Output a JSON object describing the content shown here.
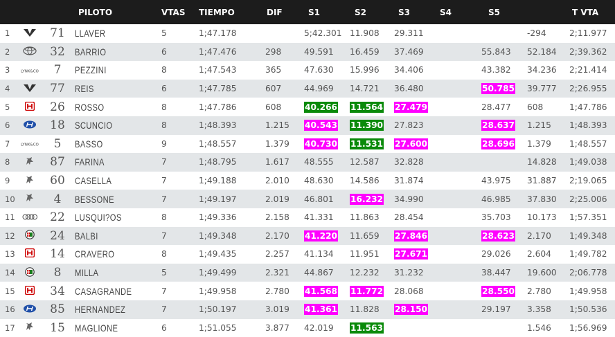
{
  "header": {
    "piloto": "PILOTO",
    "vtas": "VTAS",
    "tiempo": "TIEMPO",
    "dif": "DIF",
    "s1": "S1",
    "s2": "S2",
    "s3": "S3",
    "s4": "S4",
    "s5": "S5",
    "tvta": "T VTA"
  },
  "rows": [
    {
      "pos": "1",
      "brand": "cupra",
      "num": "71",
      "name": "LLAVER",
      "vtas": "5",
      "tiempo": "1;47.178",
      "dif": "",
      "s1": "5;42.301",
      "s2": "11.908",
      "s3": "29.311",
      "s4": "",
      "s5": "",
      "x": "-294",
      "tvta": "2;11.977"
    },
    {
      "pos": "2",
      "brand": "toyota",
      "num": "32",
      "name": "BARRIO",
      "vtas": "6",
      "tiempo": "1;47.476",
      "dif": "298",
      "s1": "49.591",
      "s2": "16.459",
      "s3": "37.469",
      "s4": "",
      "s5": "55.843",
      "x": "52.184",
      "tvta": "2;39.362"
    },
    {
      "pos": "3",
      "brand": "lynkco",
      "num": "7",
      "name": "PEZZINI",
      "vtas": "8",
      "tiempo": "1;47.543",
      "dif": "365",
      "s1": "47.630",
      "s2": "15.996",
      "s3": "34.406",
      "s4": "",
      "s5": "43.382",
      "x": "34.236",
      "tvta": "2;21.414"
    },
    {
      "pos": "4",
      "brand": "cupra",
      "num": "77",
      "name": "REIS",
      "vtas": "6",
      "tiempo": "1;47.785",
      "dif": "607",
      "s1": "44.969",
      "s2": "14.721",
      "s3": "36.480",
      "s4": "",
      "s5": "50.785",
      "x": "39.777",
      "tvta": "2;26.955"
    },
    {
      "pos": "5",
      "brand": "honda",
      "num": "26",
      "name": "ROSSO",
      "vtas": "8",
      "tiempo": "1;47.786",
      "dif": "608",
      "s1": "40.266",
      "s2": "11.564",
      "s3": "27.479",
      "s4": "",
      "s5": "28.477",
      "x": "608",
      "tvta": "1;47.786"
    },
    {
      "pos": "6",
      "brand": "hyundai",
      "num": "18",
      "name": "SCUNCIO",
      "vtas": "8",
      "tiempo": "1;48.393",
      "dif": "1.215",
      "s1": "40.543",
      "s2": "11.390",
      "s3": "27.823",
      "s4": "",
      "s5": "28.637",
      "x": "1.215",
      "tvta": "1;48.393"
    },
    {
      "pos": "7",
      "brand": "lynkco",
      "num": "5",
      "name": "BASSO",
      "vtas": "9",
      "tiempo": "1;48.557",
      "dif": "1.379",
      "s1": "40.730",
      "s2": "11.531",
      "s3": "27.600",
      "s4": "",
      "s5": "28.696",
      "x": "1.379",
      "tvta": "1;48.557"
    },
    {
      "pos": "8",
      "brand": "peugeot",
      "num": "87",
      "name": "FARINA",
      "vtas": "7",
      "tiempo": "1;48.795",
      "dif": "1.617",
      "s1": "48.555",
      "s2": "12.587",
      "s3": "32.828",
      "s4": "",
      "s5": "",
      "x": "14.828",
      "tvta": "1;49.038"
    },
    {
      "pos": "9",
      "brand": "peugeot",
      "num": "60",
      "name": "CASELLA",
      "vtas": "7",
      "tiempo": "1;49.188",
      "dif": "2.010",
      "s1": "48.630",
      "s2": "14.586",
      "s3": "31.874",
      "s4": "",
      "s5": "43.975",
      "x": "31.887",
      "tvta": "2;19.065"
    },
    {
      "pos": "10",
      "brand": "peugeot",
      "num": "4",
      "name": "BESSONE",
      "vtas": "7",
      "tiempo": "1;49.197",
      "dif": "2.019",
      "s1": "46.801",
      "s2": "16.232",
      "s3": "34.990",
      "s4": "",
      "s5": "46.985",
      "x": "37.830",
      "tvta": "2;25.006"
    },
    {
      "pos": "11",
      "brand": "audi",
      "num": "22",
      "name": "LUSQUI?OS",
      "vtas": "8",
      "tiempo": "1;49.336",
      "dif": "2.158",
      "s1": "41.331",
      "s2": "11.863",
      "s3": "28.454",
      "s4": "",
      "s5": "35.703",
      "x": "10.173",
      "tvta": "1;57.351"
    },
    {
      "pos": "12",
      "brand": "alfa",
      "num": "24",
      "name": "BALBI",
      "vtas": "7",
      "tiempo": "1;49.348",
      "dif": "2.170",
      "s1": "41.220",
      "s2": "11.659",
      "s3": "27.846",
      "s4": "",
      "s5": "28.623",
      "x": "2.170",
      "tvta": "1;49.348"
    },
    {
      "pos": "13",
      "brand": "honda",
      "num": "14",
      "name": "CRAVERO",
      "vtas": "8",
      "tiempo": "1;49.435",
      "dif": "2.257",
      "s1": "41.134",
      "s2": "11.951",
      "s3": "27.671",
      "s4": "",
      "s5": "29.026",
      "x": "2.604",
      "tvta": "1;49.782"
    },
    {
      "pos": "14",
      "brand": "alfa",
      "num": "8",
      "name": "MILLA",
      "vtas": "5",
      "tiempo": "1;49.499",
      "dif": "2.321",
      "s1": "44.867",
      "s2": "12.232",
      "s3": "31.232",
      "s4": "",
      "s5": "38.447",
      "x": "19.600",
      "tvta": "2;06.778"
    },
    {
      "pos": "15",
      "brand": "honda",
      "num": "34",
      "name": "CASAGRANDE",
      "vtas": "7",
      "tiempo": "1;49.958",
      "dif": "2.780",
      "s1": "41.568",
      "s2": "11.772",
      "s3": "28.068",
      "s4": "",
      "s5": "28.550",
      "x": "2.780",
      "tvta": "1;49.958"
    },
    {
      "pos": "16",
      "brand": "hyundai",
      "num": "85",
      "name": "HERNANDEZ",
      "vtas": "7",
      "tiempo": "1;50.197",
      "dif": "3.019",
      "s1": "41.361",
      "s2": "11.828",
      "s3": "28.150",
      "s4": "",
      "s5": "29.197",
      "x": "3.358",
      "tvta": "1;50.536"
    },
    {
      "pos": "17",
      "brand": "peugeot",
      "num": "15",
      "name": "MAGLIONE",
      "vtas": "6",
      "tiempo": "1;51.055",
      "dif": "3.877",
      "s1": "42.019",
      "s2": "11.563",
      "s3": "",
      "s4": "",
      "s5": "",
      "x": "1.546",
      "tvta": "1;56.969"
    }
  ],
  "highlights": {
    "5": {
      "s1": "green",
      "s2": "green",
      "s3": "mag"
    },
    "6": {
      "s1": "mag",
      "s2": "green",
      "s5": "mag"
    },
    "7": {
      "s1": "mag",
      "s2": "green",
      "s3": "mag",
      "s5": "mag"
    },
    "4": {
      "s5": "mag"
    },
    "10": {
      "s2": "mag"
    },
    "12": {
      "s1": "mag",
      "s3": "mag",
      "s5": "mag"
    },
    "13": {
      "s3": "mag"
    },
    "15": {
      "s1": "mag",
      "s2": "mag",
      "s5": "mag"
    },
    "16": {
      "s1": "mag",
      "s3": "mag"
    },
    "17": {
      "s2": "green"
    }
  },
  "colors": {
    "header_bg": "#1c1c1c",
    "row_alt": "#e3e6e8",
    "green": "#0a8a0a",
    "magenta": "#ff00ff"
  },
  "watermark": "RL"
}
